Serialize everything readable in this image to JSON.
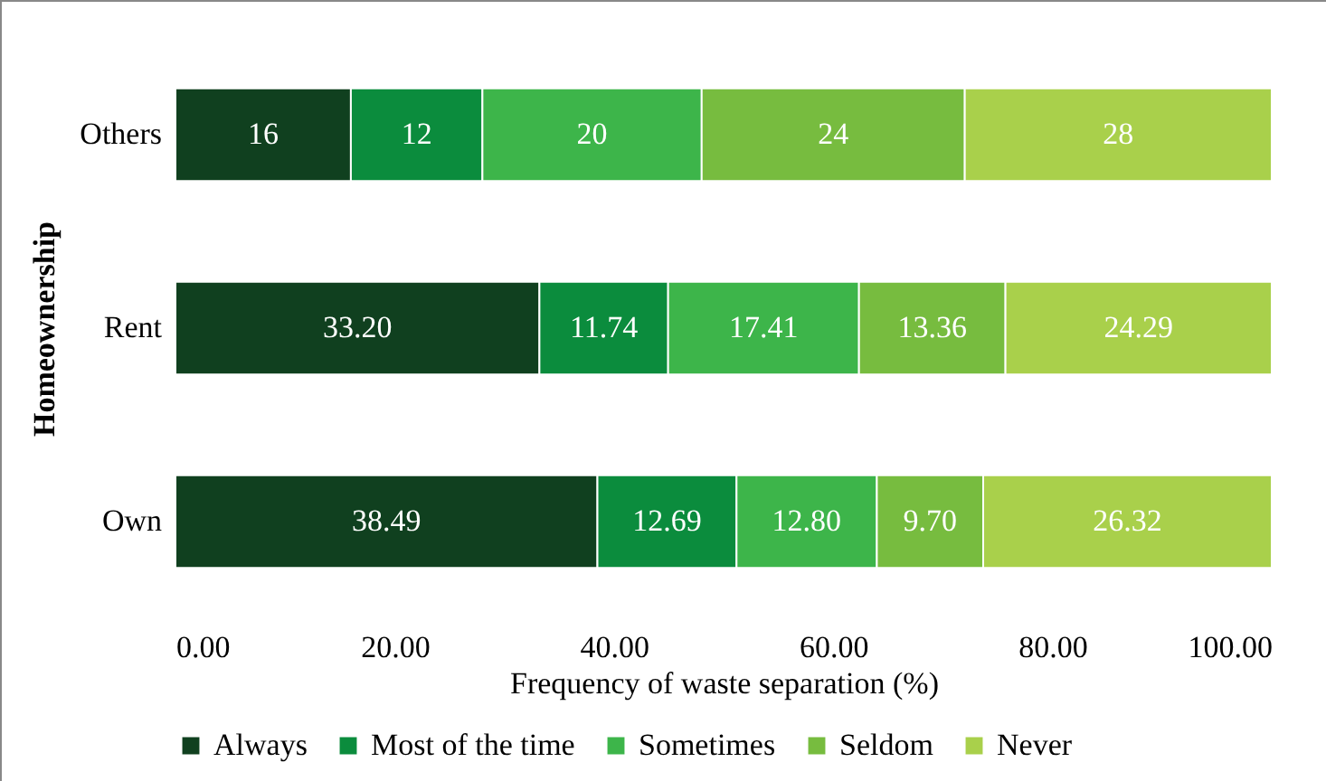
{
  "chart_data": {
    "type": "bar",
    "orientation": "horizontal",
    "stacked": true,
    "xlabel": "Frequency of waste separation (%)",
    "ylabel": "Homeownership",
    "categories": [
      "Others",
      "Rent",
      "Own"
    ],
    "series": [
      {
        "name": "Always",
        "color": "#10401f",
        "values": [
          16,
          33.2,
          38.49
        ],
        "value_labels": [
          "16",
          "33.20",
          "38.49"
        ]
      },
      {
        "name": "Most of the time",
        "color": "#0b8c3d",
        "values": [
          12,
          11.74,
          12.69
        ],
        "value_labels": [
          "12",
          "11.74",
          "12.69"
        ]
      },
      {
        "name": "Sometimes",
        "color": "#3db54a",
        "values": [
          20,
          17.41,
          12.8
        ],
        "value_labels": [
          "20",
          "17.41",
          "12.80"
        ]
      },
      {
        "name": "Seldom",
        "color": "#77bc3f",
        "values": [
          24,
          13.36,
          9.7
        ],
        "value_labels": [
          "24",
          "13.36",
          "9.70"
        ]
      },
      {
        "name": "Never",
        "color": "#a9d04b",
        "values": [
          28,
          24.29,
          26.32
        ],
        "value_labels": [
          "28",
          "24.29",
          "26.32"
        ]
      }
    ],
    "xlim": [
      0,
      100
    ],
    "xticks": [
      {
        "value": 0,
        "label": "0.00"
      },
      {
        "value": 20,
        "label": "20.00"
      },
      {
        "value": 40,
        "label": "40.00"
      },
      {
        "value": 60,
        "label": "60.00"
      },
      {
        "value": 80,
        "label": "80.00"
      },
      {
        "value": 100,
        "label": "100.00"
      }
    ],
    "grid": false,
    "legend": "bottom"
  }
}
